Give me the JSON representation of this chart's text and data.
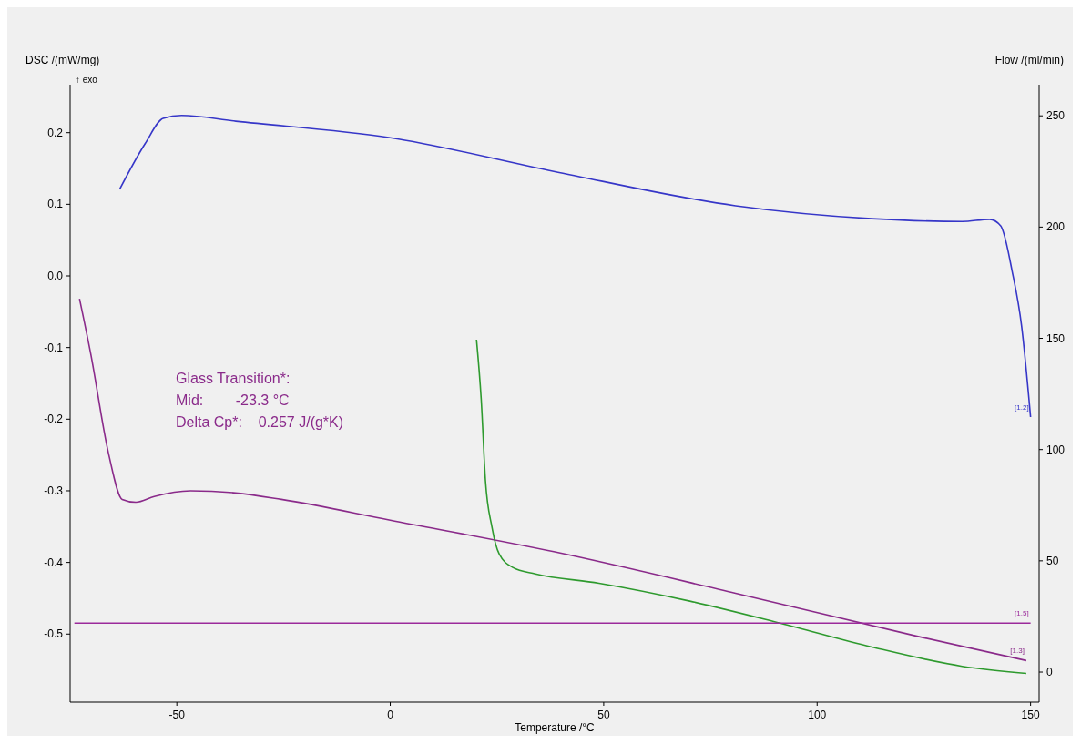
{
  "chart_data": {
    "type": "line",
    "xlabel": "Temperature /°C",
    "ylabel": "DSC /(mW/mg)",
    "y2label": "Flow /(ml/min)",
    "xlim": [
      -75,
      152
    ],
    "xticks": [
      -50,
      0,
      50,
      100,
      150
    ],
    "ylim": [
      -0.595,
      0.267
    ],
    "yticks": [
      -0.5,
      -0.4,
      -0.3,
      -0.2,
      -0.1,
      {
        "value": 0,
        "label": "0.0"
      },
      0.1,
      0.2
    ],
    "y2lim": [
      -13.5,
      264
    ],
    "y2ticks": [
      0,
      50,
      100,
      150,
      200,
      250
    ],
    "line_style": "solid",
    "marker": "none",
    "annotations": [
      "↑ exo",
      "Glass Transition*:",
      "Mid:        -23.3 °C",
      "Delta Cp*:    0.257 J/(g*K)"
    ],
    "series": [
      {
        "name": "[1.2]",
        "color": "#3636c8",
        "x": [
          -63.4,
          -57.4,
          -53.2,
          -48.9,
          -36.2,
          0,
          38.3,
          80.9,
          112.8,
          134,
          140.4,
          143,
          145.7,
          147.9,
          150
        ],
        "values": [
          0.121,
          0.185,
          0.22,
          0.224,
          0.216,
          0.193,
          0.146,
          0.098,
          0.08,
          0.076,
          0.079,
          0.07,
          0.006,
          -0.07,
          -0.197
        ]
      },
      {
        "name": "[1.3]",
        "color": "#8a2a8a",
        "x": [
          -72.8,
          -70.2,
          -66,
          -62.8,
          -59.6,
          -55.3,
          -46.8,
          -36.2,
          -25.5,
          0,
          38.3,
          80.9,
          123.4,
          149
        ],
        "values": [
          -0.032,
          -0.108,
          -0.248,
          -0.312,
          -0.316,
          -0.308,
          -0.3,
          -0.303,
          -0.312,
          -0.341,
          -0.385,
          -0.443,
          -0.503,
          -0.537
        ]
      },
      {
        "color": "#2e9a2e",
        "x": [
          20.2,
          21.3,
          22.3,
          23.8,
          25.5,
          28.7,
          34,
          48.9,
          70.2,
          91.5,
          112.8,
          134,
          149
        ],
        "values": [
          -0.089,
          -0.172,
          -0.286,
          -0.35,
          -0.388,
          -0.407,
          -0.416,
          -0.429,
          -0.454,
          -0.485,
          -0.518,
          -0.545,
          -0.555
        ]
      },
      {
        "name": "[1.5]",
        "color": "#9b2a9b",
        "axis": "y2",
        "x": [
          -74,
          150
        ],
        "values": [
          22,
          22
        ]
      }
    ]
  }
}
